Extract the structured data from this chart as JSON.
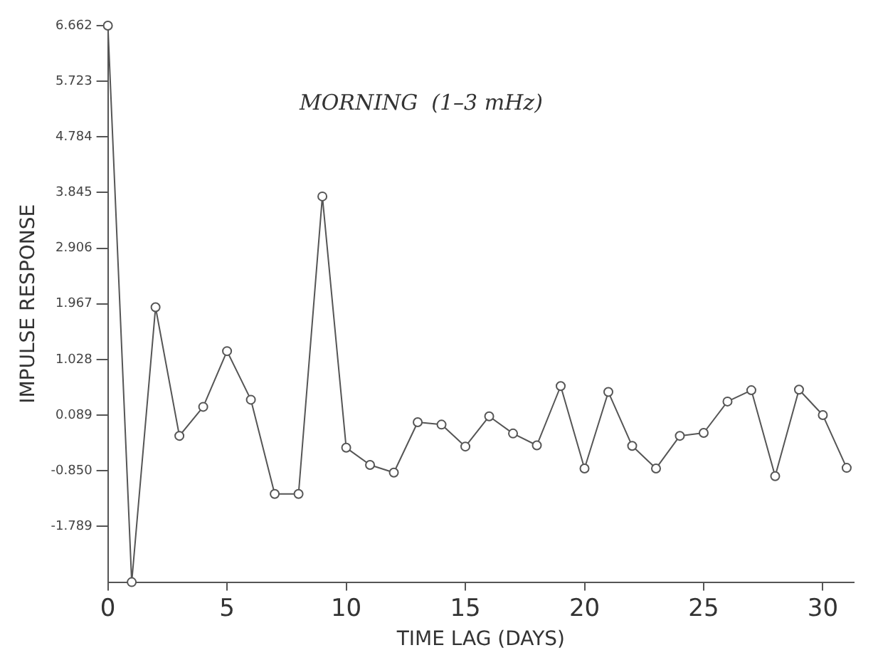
{
  "chart_data": {
    "type": "line",
    "title": "MORNING  (1–3 mHz)",
    "xlabel": "TIME LAG (DAYS)",
    "ylabel": "IMPULSE RESPONSE",
    "x": [
      0,
      1,
      2,
      3,
      4,
      5,
      6,
      7,
      8,
      9,
      10,
      11,
      12,
      13,
      14,
      15,
      16,
      17,
      18,
      19,
      20,
      21,
      22,
      23,
      24,
      25,
      26,
      27,
      28,
      29,
      30,
      31
    ],
    "series": [
      {
        "color": "#555555",
        "values": [
          6.662,
          -2.728,
          1.91,
          -0.26,
          0.23,
          1.17,
          0.35,
          -1.24,
          -1.24,
          3.78,
          -0.46,
          -0.75,
          -0.88,
          -0.03,
          -0.07,
          -0.44,
          0.07,
          -0.22,
          -0.42,
          0.58,
          -0.81,
          0.48,
          -0.43,
          -0.81,
          -0.26,
          -0.21,
          0.32,
          0.51,
          -0.94,
          0.52,
          0.09,
          -0.8
        ]
      }
    ],
    "xlim": [
      0,
      31.3
    ],
    "xticks": [
      0,
      5,
      10,
      15,
      20,
      25,
      30
    ],
    "ylim": [
      -2.728,
      6.662
    ],
    "yticks": [
      6.662,
      5.723,
      4.784,
      3.845,
      2.906,
      1.967,
      1.028,
      0.089,
      {
        "value": -0.85,
        "label": "-0.850"
      },
      -1.789
    ],
    "grid": false,
    "legend": false,
    "marker": "circle",
    "line_style": "solid"
  }
}
